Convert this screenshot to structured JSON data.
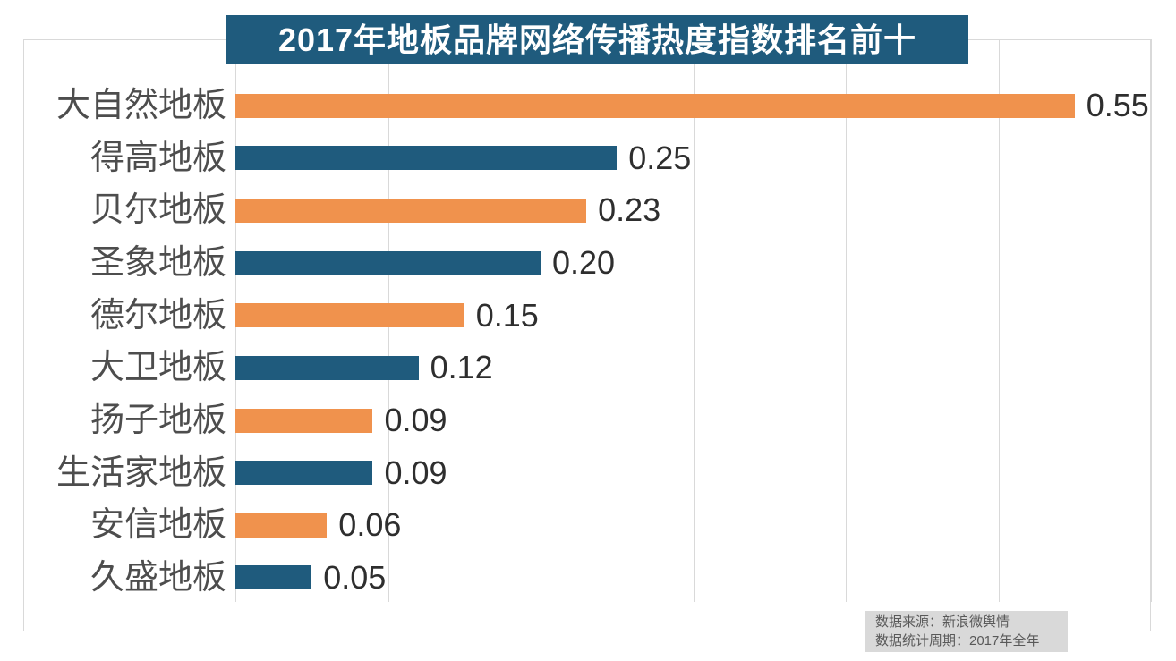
{
  "chart_data": {
    "type": "bar",
    "orientation": "horizontal",
    "title": "2017年地板品牌网络传播热度指数排名前十",
    "categories": [
      "大自然地板",
      "得高地板",
      "贝尔地板",
      "圣象地板",
      "德尔地板",
      "大卫地板",
      "扬子地板",
      "生活家地板",
      "安信地板",
      "久盛地板"
    ],
    "values": [
      0.55,
      0.25,
      0.23,
      0.2,
      0.15,
      0.12,
      0.09,
      0.09,
      0.06,
      0.05
    ],
    "value_labels": [
      "0.55",
      "0.25",
      "0.23",
      "0.20",
      "0.15",
      "0.12",
      "0.09",
      "0.09",
      "0.06",
      "0.05"
    ],
    "xlabel": "",
    "ylabel": "",
    "xlim": [
      0,
      0.6
    ],
    "gridline_interval": 0.1,
    "grid": "vertical-only",
    "legend": "none",
    "axis_tick_labels_visible": false
  },
  "colors": {
    "bar_odd_rows_orange": "#F0924D",
    "bar_even_rows_blue": "#1F5B7D",
    "title_background": "#1F5B7D",
    "title_text": "#FFFFFF",
    "gridline": "#D9D9D9",
    "category_text": "#4D4D4D",
    "value_text": "#2E2E2E",
    "footer_background": "#D9D9D9",
    "footer_text": "#595959"
  },
  "footer": {
    "source": "数据来源：新浪微舆情",
    "period": "数据统计周期：2017年全年"
  }
}
